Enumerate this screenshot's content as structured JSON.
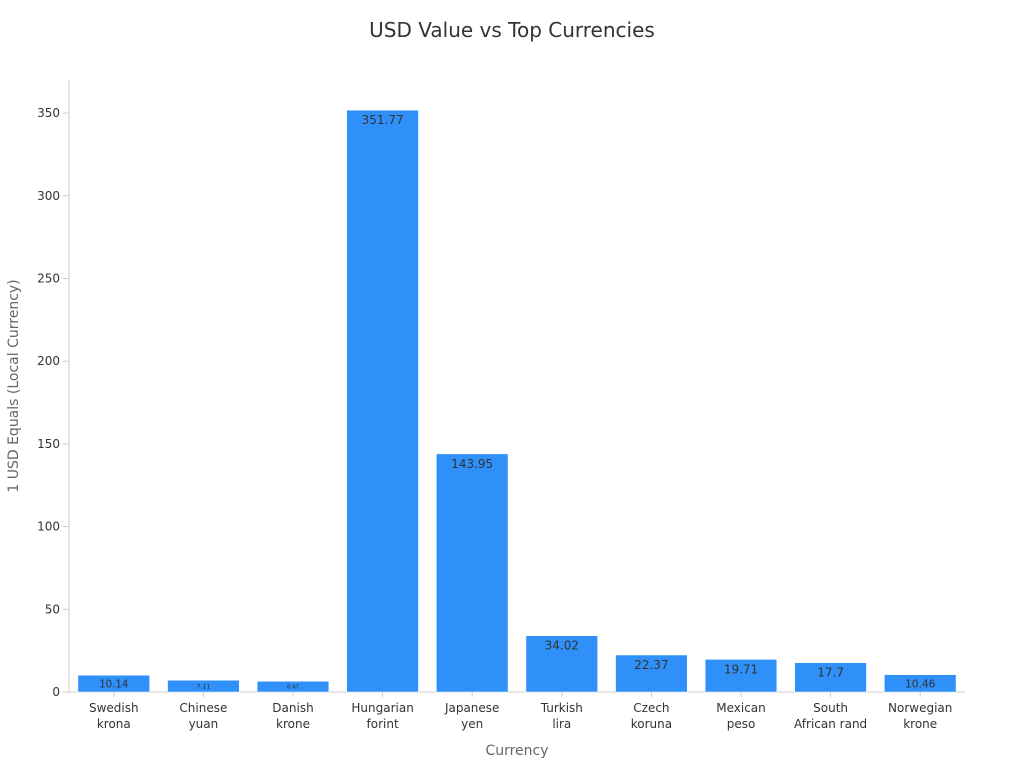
{
  "chart_data": {
    "type": "bar",
    "title": "USD Value vs Top Currencies",
    "xlabel": "Currency",
    "ylabel": "1 USD Equals (Local Currency)",
    "categories": [
      [
        "Swedish",
        "krona"
      ],
      [
        "Chinese",
        "yuan"
      ],
      [
        "Danish",
        "krone"
      ],
      [
        "Hungarian",
        "forint"
      ],
      [
        "Japanese",
        "yen"
      ],
      [
        "Turkish",
        "lira"
      ],
      [
        "Czech",
        "koruna"
      ],
      [
        "Mexican",
        "peso"
      ],
      [
        "South",
        "African rand"
      ],
      [
        "Norwegian",
        "krone"
      ]
    ],
    "values": [
      10.14,
      7.11,
      6.47,
      351.77,
      143.95,
      34.02,
      22.37,
      19.71,
      17.7,
      10.46
    ],
    "data_labels": [
      "10.14",
      "7.11",
      "6.47",
      "351.77",
      "143.95",
      "34.02",
      "22.37",
      "19.71",
      "17.7",
      "10.46"
    ],
    "ylim": [
      0,
      370
    ],
    "yticks": [
      0,
      50,
      100,
      150,
      200,
      250,
      300,
      350
    ],
    "grid": false,
    "legend": "none",
    "colors": {
      "bar": "#2f90fa",
      "axis": "#cccccc",
      "text": "#333333"
    }
  }
}
